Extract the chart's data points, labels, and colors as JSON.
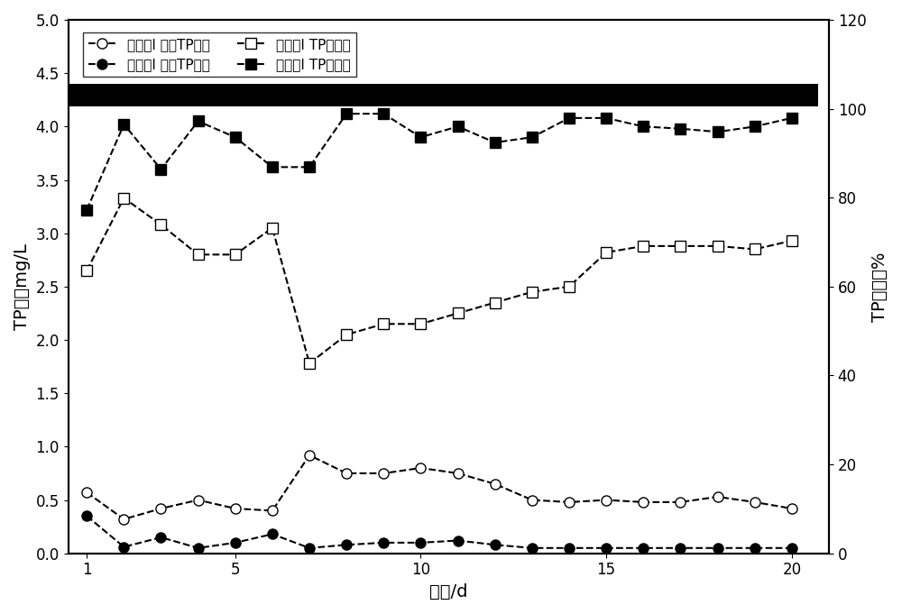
{
  "title": "",
  "xlabel": "时间/d",
  "ylabel_left": "TP浓度mg/L",
  "ylabel_right": "TP去除率%",
  "xlim": [
    0.5,
    21
  ],
  "ylim_left": [
    0,
    5.0
  ],
  "ylim_right": [
    0,
    120
  ],
  "left_ticks": [
    0,
    0.5,
    1.0,
    1.5,
    2.0,
    2.5,
    3.0,
    3.5,
    4.0,
    4.5,
    5.0
  ],
  "right_ticks": [
    0,
    20,
    40,
    60,
    80,
    100,
    120
  ],
  "xticks": [
    1,
    5,
    10,
    15,
    20
  ],
  "series1_label": "对照组I 出水TP浓度",
  "series1_x": [
    1,
    2,
    3,
    4,
    5,
    6,
    7,
    8,
    9,
    10,
    11,
    12,
    13,
    14,
    15,
    16,
    17,
    18,
    19,
    20
  ],
  "series1_y": [
    0.57,
    0.32,
    0.42,
    0.5,
    0.42,
    0.4,
    0.92,
    0.75,
    0.75,
    0.8,
    0.75,
    0.65,
    0.5,
    0.48,
    0.5,
    0.48,
    0.48,
    0.53,
    0.48,
    0.42
  ],
  "series2_label": "实验组I 出水TP浓度",
  "series2_x": [
    1,
    2,
    3,
    4,
    5,
    6,
    7,
    8,
    9,
    10,
    11,
    12,
    13,
    14,
    15,
    16,
    17,
    18,
    19,
    20
  ],
  "series2_y": [
    0.35,
    0.06,
    0.15,
    0.05,
    0.1,
    0.18,
    0.05,
    0.08,
    0.1,
    0.1,
    0.12,
    0.08,
    0.05,
    0.05,
    0.05,
    0.05,
    0.05,
    0.05,
    0.05,
    0.05
  ],
  "series3_label": "对照组I TP去除率",
  "series3_x": [
    1,
    2,
    3,
    4,
    5,
    6,
    7,
    8,
    9,
    10,
    11,
    12,
    13,
    14,
    15,
    16,
    17,
    18,
    19,
    20
  ],
  "series3_y": [
    2.65,
    3.33,
    3.08,
    2.8,
    2.8,
    3.05,
    1.78,
    2.05,
    2.15,
    2.15,
    2.25,
    2.35,
    2.45,
    2.5,
    2.82,
    2.88,
    2.88,
    2.88,
    2.85,
    2.93
  ],
  "series4_label": "实验组I TP去除率",
  "series4_x": [
    1,
    2,
    3,
    4,
    5,
    6,
    7,
    8,
    9,
    10,
    11,
    12,
    13,
    14,
    15,
    16,
    17,
    18,
    19,
    20
  ],
  "series4_y": [
    3.22,
    4.02,
    3.6,
    4.05,
    3.9,
    3.62,
    3.62,
    4.12,
    4.12,
    3.9,
    4.0,
    3.85,
    3.9,
    4.08,
    4.08,
    4.0,
    3.98,
    3.95,
    4.0,
    4.08
  ],
  "background_color": "#ffffff",
  "line_color": "#000000"
}
